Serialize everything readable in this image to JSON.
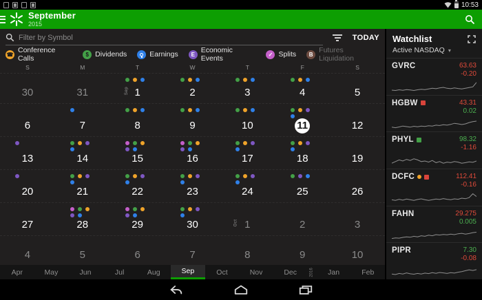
{
  "status_bar": {
    "time": "10:53"
  },
  "header": {
    "month": "September",
    "year": "2015",
    "accent": "#0d9e02"
  },
  "toolbar": {
    "search_placeholder": "Filter by Symbol",
    "today_label": "TODAY"
  },
  "legend": {
    "items": [
      {
        "id": "conference-calls",
        "label": "Conference Calls",
        "color": "#efa32a",
        "glyph": "phone",
        "muted": false
      },
      {
        "id": "dividends",
        "label": "Dividends",
        "color": "#43a047",
        "glyph": "dollar",
        "muted": false
      },
      {
        "id": "earnings",
        "label": "Earnings",
        "color": "#2f80e8",
        "glyph": "bulb",
        "muted": false
      },
      {
        "id": "economic-events",
        "label": "Economic Events",
        "color": "#7e57c2",
        "glyph": "E",
        "muted": false
      },
      {
        "id": "splits",
        "label": "Splits",
        "color": "#c45fc9",
        "glyph": "check",
        "muted": false
      },
      {
        "id": "futures-liquidation",
        "label": "Futures Liquidation",
        "color": "#6d4c41",
        "glyph": "B",
        "muted": true
      }
    ]
  },
  "calendar": {
    "day_headers": [
      "S",
      "M",
      "T",
      "W",
      "T",
      "F",
      "S"
    ],
    "event_colors": {
      "cc": "#efa32a",
      "div": "#43a047",
      "earn": "#2f80e8",
      "econ": "#7e57c2",
      "split": "#c45fc9"
    },
    "weeks": [
      [
        {
          "day": "30",
          "muted": true,
          "events": []
        },
        {
          "day": "31",
          "muted": true,
          "events": []
        },
        {
          "day": "1",
          "month_label": "Sep",
          "events": [
            "div",
            "cc",
            "earn"
          ]
        },
        {
          "day": "2",
          "events": [
            "div",
            "cc",
            "earn"
          ]
        },
        {
          "day": "3",
          "events": [
            "div",
            "cc",
            "earn"
          ]
        },
        {
          "day": "4",
          "events": [
            "div",
            "cc",
            "earn"
          ]
        },
        {
          "day": "5",
          "events": []
        }
      ],
      [
        {
          "day": "6",
          "events": []
        },
        {
          "day": "7",
          "events": [
            "earn"
          ]
        },
        {
          "day": "8",
          "events": [
            "div",
            "cc",
            "earn"
          ]
        },
        {
          "day": "9",
          "events": [
            "div",
            "cc",
            "earn"
          ]
        },
        {
          "day": "10",
          "events": [
            "div",
            "cc",
            "earn"
          ]
        },
        {
          "day": "11",
          "today": true,
          "events": [
            "div",
            "cc",
            "econ",
            "earn"
          ]
        },
        {
          "day": "12",
          "events": []
        }
      ],
      [
        {
          "day": "13",
          "events": [
            "econ"
          ]
        },
        {
          "day": "14",
          "events": [
            "div",
            "cc",
            "econ",
            "earn"
          ]
        },
        {
          "day": "15",
          "events": [
            "split",
            "div",
            "cc",
            "econ",
            "earn"
          ]
        },
        {
          "day": "16",
          "events": [
            "split",
            "div",
            "cc",
            "econ",
            "earn"
          ]
        },
        {
          "day": "17",
          "events": [
            "div",
            "cc",
            "econ",
            "earn"
          ]
        },
        {
          "day": "18",
          "events": [
            "div",
            "cc",
            "econ",
            "earn"
          ]
        },
        {
          "day": "19",
          "events": []
        }
      ],
      [
        {
          "day": "20",
          "events": [
            "econ"
          ]
        },
        {
          "day": "21",
          "events": [
            "div",
            "cc",
            "econ",
            "earn"
          ]
        },
        {
          "day": "22",
          "events": [
            "div",
            "cc",
            "econ",
            "earn"
          ]
        },
        {
          "day": "23",
          "events": [
            "div",
            "cc",
            "econ",
            "earn"
          ]
        },
        {
          "day": "24",
          "events": [
            "div",
            "cc",
            "econ",
            "earn"
          ]
        },
        {
          "day": "25",
          "events": [
            "div",
            "econ",
            "earn"
          ]
        },
        {
          "day": "26",
          "events": []
        }
      ],
      [
        {
          "day": "27",
          "events": []
        },
        {
          "day": "28",
          "events": [
            "split",
            "div",
            "cc",
            "econ",
            "earn"
          ]
        },
        {
          "day": "29",
          "events": [
            "split",
            "div",
            "cc",
            "econ",
            "earn"
          ]
        },
        {
          "day": "30",
          "events": [
            "div",
            "cc",
            "econ",
            "earn"
          ]
        },
        {
          "day": "1",
          "month_label": "Oct",
          "muted": true,
          "events": []
        },
        {
          "day": "2",
          "muted": true,
          "events": []
        },
        {
          "day": "3",
          "muted": true,
          "events": []
        }
      ],
      [
        {
          "day": "4",
          "muted": true,
          "events": []
        },
        {
          "day": "5",
          "muted": true,
          "events": []
        },
        {
          "day": "6",
          "muted": true,
          "events": []
        },
        {
          "day": "7",
          "muted": true,
          "events": []
        },
        {
          "day": "8",
          "muted": true,
          "events": []
        },
        {
          "day": "9",
          "muted": true,
          "events": []
        },
        {
          "day": "10",
          "muted": true,
          "events": []
        }
      ]
    ]
  },
  "month_tabs": {
    "items": [
      {
        "label": "Apr"
      },
      {
        "label": "May"
      },
      {
        "label": "Jun"
      },
      {
        "label": "Jul"
      },
      {
        "label": "Aug"
      },
      {
        "label": "Sep",
        "selected": true
      },
      {
        "label": "Oct"
      },
      {
        "label": "Nov"
      },
      {
        "label": "Dec"
      },
      {
        "label": "2016",
        "year_divider": true
      },
      {
        "label": "Jan"
      },
      {
        "label": "Feb"
      }
    ]
  },
  "watchlist": {
    "title": "Watchlist",
    "subtitle": "Active NASDAQ",
    "items": [
      {
        "symbol": "GVRC",
        "price": "63.63",
        "change": "-0.20",
        "price_color": "red",
        "change_color": "red",
        "badges": [],
        "spark": [
          0.25,
          0.22,
          0.28,
          0.24,
          0.3,
          0.26,
          0.22,
          0.28,
          0.33,
          0.3,
          0.36,
          0.42,
          0.38,
          0.45,
          0.5,
          0.42,
          0.38,
          0.45,
          0.4,
          0.36,
          0.42,
          0.48,
          0.55,
          0.95
        ]
      },
      {
        "symbol": "HGBW",
        "price": "43.31",
        "change": "0.02",
        "price_color": "red",
        "change_color": "green",
        "badges": [
          {
            "shape": "square",
            "color": "#d9443b"
          }
        ],
        "spark": [
          0.2,
          0.15,
          0.22,
          0.3,
          0.25,
          0.2,
          0.28,
          0.24,
          0.3,
          0.27,
          0.33,
          0.3,
          0.38,
          0.35,
          0.42,
          0.38,
          0.45,
          0.55,
          0.5,
          0.44,
          0.5,
          0.62,
          0.7,
          0.75
        ]
      },
      {
        "symbol": "PHYL",
        "price": "98.32",
        "change": "-1.16",
        "price_color": "green",
        "change_color": "red",
        "badges": [
          {
            "shape": "square",
            "color": "#43a047"
          }
        ],
        "spark": [
          0.3,
          0.45,
          0.6,
          0.5,
          0.65,
          0.55,
          0.7,
          0.6,
          0.45,
          0.5,
          0.4,
          0.55,
          0.35,
          0.45,
          0.3,
          0.4,
          0.35,
          0.45,
          0.4,
          0.3,
          0.35,
          0.42,
          0.38,
          0.5
        ]
      },
      {
        "symbol": "DCFC",
        "price": "112.41",
        "change": "-0.16",
        "price_color": "red",
        "change_color": "red",
        "badges": [
          {
            "shape": "circle",
            "color": "#efa32a"
          },
          {
            "shape": "square",
            "color": "#d9443b"
          }
        ],
        "spark": [
          0.35,
          0.3,
          0.4,
          0.32,
          0.42,
          0.36,
          0.3,
          0.38,
          0.44,
          0.36,
          0.3,
          0.36,
          0.42,
          0.38,
          0.46,
          0.4,
          0.36,
          0.44,
          0.4,
          0.5,
          0.45,
          0.55,
          0.9,
          0.65
        ]
      },
      {
        "symbol": "FAHN",
        "price": "29.275",
        "change": "0.005",
        "price_color": "red",
        "change_color": "green",
        "badges": [],
        "spark": [
          0.15,
          0.2,
          0.18,
          0.25,
          0.3,
          0.26,
          0.35,
          0.3,
          0.4,
          0.35,
          0.45,
          0.4,
          0.5,
          0.46,
          0.52,
          0.48,
          0.55,
          0.5,
          0.58,
          0.62,
          0.55,
          0.6,
          0.68,
          0.72
        ]
      },
      {
        "symbol": "PIPR",
        "price": "7.30",
        "change": "-0.08",
        "price_color": "green",
        "change_color": "red",
        "badges": [],
        "spark": [
          0.3,
          0.25,
          0.35,
          0.3,
          0.4,
          0.32,
          0.28,
          0.35,
          0.3,
          0.38,
          0.34,
          0.42,
          0.36,
          0.44,
          0.4,
          0.35,
          0.42,
          0.38,
          0.46,
          0.52,
          0.6,
          0.68,
          0.62,
          0.7
        ]
      }
    ]
  }
}
